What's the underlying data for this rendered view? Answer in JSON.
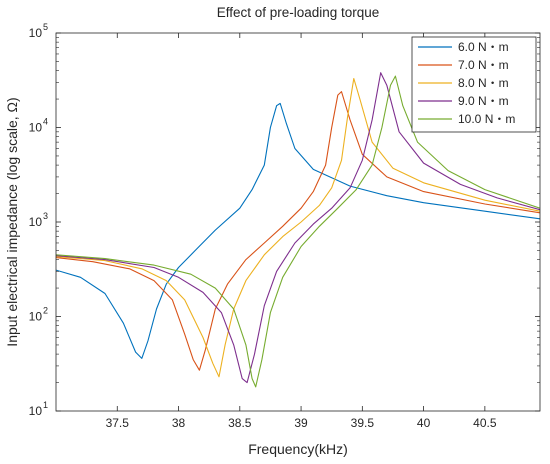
{
  "chart_data": {
    "type": "line",
    "title": "Effect of pre-loading torque",
    "xlabel": "Frequency(kHz)",
    "ylabel": "Input electrical impedance (log scale, Ω)",
    "xlim": [
      37.0,
      40.95
    ],
    "ylim": [
      10,
      100000
    ],
    "yscale": "log",
    "xticks": [
      37.5,
      38,
      38.5,
      39,
      39.5,
      40,
      40.5
    ],
    "xtick_labels": [
      "37.5",
      "38",
      "38.5",
      "39",
      "39.5",
      "40",
      "40.5"
    ],
    "yticks": [
      {
        "value": 10,
        "base": "10",
        "exp": "1"
      },
      {
        "value": 100,
        "base": "10",
        "exp": "2"
      },
      {
        "value": 1000,
        "base": "10",
        "exp": "3"
      },
      {
        "value": 10000,
        "base": "10",
        "exp": "4"
      },
      {
        "value": 100000,
        "base": "10",
        "exp": "5"
      }
    ],
    "grid": false,
    "legend_position": "top-right",
    "series": [
      {
        "name": "6.0 N・m",
        "color": "#0072BD",
        "points": [
          [
            37.0,
            310
          ],
          [
            37.2,
            260
          ],
          [
            37.4,
            175
          ],
          [
            37.55,
            85
          ],
          [
            37.65,
            42
          ],
          [
            37.7,
            36
          ],
          [
            37.75,
            55
          ],
          [
            37.82,
            120
          ],
          [
            37.9,
            220
          ],
          [
            38.0,
            330
          ],
          [
            38.15,
            520
          ],
          [
            38.3,
            820
          ],
          [
            38.5,
            1400
          ],
          [
            38.6,
            2200
          ],
          [
            38.7,
            4000
          ],
          [
            38.75,
            10000
          ],
          [
            38.8,
            17000
          ],
          [
            38.83,
            18000
          ],
          [
            38.88,
            11000
          ],
          [
            38.95,
            6000
          ],
          [
            39.1,
            3600
          ],
          [
            39.4,
            2400
          ],
          [
            39.7,
            1900
          ],
          [
            40.0,
            1600
          ],
          [
            40.5,
            1300
          ],
          [
            40.95,
            1080
          ]
        ]
      },
      {
        "name": "7.0 N・m",
        "color": "#D95319",
        "points": [
          [
            37.0,
            420
          ],
          [
            37.3,
            380
          ],
          [
            37.6,
            320
          ],
          [
            37.8,
            240
          ],
          [
            37.95,
            150
          ],
          [
            38.05,
            65
          ],
          [
            38.12,
            35
          ],
          [
            38.17,
            27
          ],
          [
            38.22,
            45
          ],
          [
            38.3,
            120
          ],
          [
            38.4,
            220
          ],
          [
            38.55,
            400
          ],
          [
            38.7,
            600
          ],
          [
            38.85,
            900
          ],
          [
            39.0,
            1400
          ],
          [
            39.1,
            2100
          ],
          [
            39.2,
            4000
          ],
          [
            39.25,
            10000
          ],
          [
            39.3,
            22000
          ],
          [
            39.33,
            24000
          ],
          [
            39.4,
            12000
          ],
          [
            39.5,
            5200
          ],
          [
            39.7,
            3000
          ],
          [
            40.0,
            2100
          ],
          [
            40.5,
            1550
          ],
          [
            40.95,
            1250
          ]
        ]
      },
      {
        "name": "8.0 N・m",
        "color": "#EDB120",
        "points": [
          [
            37.0,
            430
          ],
          [
            37.4,
            390
          ],
          [
            37.7,
            320
          ],
          [
            37.9,
            240
          ],
          [
            38.05,
            150
          ],
          [
            38.2,
            60
          ],
          [
            38.28,
            32
          ],
          [
            38.33,
            23
          ],
          [
            38.38,
            50
          ],
          [
            38.45,
            120
          ],
          [
            38.55,
            240
          ],
          [
            38.7,
            450
          ],
          [
            38.85,
            700
          ],
          [
            39.0,
            1000
          ],
          [
            39.15,
            1500
          ],
          [
            39.25,
            2300
          ],
          [
            39.33,
            4500
          ],
          [
            39.38,
            13000
          ],
          [
            39.43,
            33000
          ],
          [
            39.48,
            20000
          ],
          [
            39.58,
            7000
          ],
          [
            39.75,
            3700
          ],
          [
            40.0,
            2600
          ],
          [
            40.5,
            1700
          ],
          [
            40.95,
            1300
          ]
        ]
      },
      {
        "name": "9.0 N・m",
        "color": "#7E2F8E",
        "points": [
          [
            37.0,
            440
          ],
          [
            37.4,
            400
          ],
          [
            37.8,
            330
          ],
          [
            38.0,
            260
          ],
          [
            38.2,
            180
          ],
          [
            38.35,
            110
          ],
          [
            38.45,
            50
          ],
          [
            38.52,
            22
          ],
          [
            38.56,
            20
          ],
          [
            38.62,
            40
          ],
          [
            38.7,
            130
          ],
          [
            38.8,
            300
          ],
          [
            38.95,
            600
          ],
          [
            39.1,
            950
          ],
          [
            39.25,
            1400
          ],
          [
            39.4,
            2300
          ],
          [
            39.5,
            4500
          ],
          [
            39.58,
            12000
          ],
          [
            39.65,
            38000
          ],
          [
            39.7,
            28000
          ],
          [
            39.8,
            9000
          ],
          [
            40.0,
            4200
          ],
          [
            40.3,
            2500
          ],
          [
            40.6,
            1800
          ],
          [
            40.95,
            1350
          ]
        ]
      },
      {
        "name": "10.0 N・m",
        "color": "#77AC30",
        "points": [
          [
            37.0,
            450
          ],
          [
            37.4,
            410
          ],
          [
            37.8,
            350
          ],
          [
            38.1,
            280
          ],
          [
            38.3,
            200
          ],
          [
            38.45,
            120
          ],
          [
            38.55,
            50
          ],
          [
            38.6,
            22
          ],
          [
            38.63,
            18
          ],
          [
            38.68,
            35
          ],
          [
            38.75,
            110
          ],
          [
            38.85,
            260
          ],
          [
            39.0,
            550
          ],
          [
            39.15,
            900
          ],
          [
            39.3,
            1400
          ],
          [
            39.45,
            2200
          ],
          [
            39.58,
            4000
          ],
          [
            39.66,
            10000
          ],
          [
            39.73,
            28000
          ],
          [
            39.77,
            35000
          ],
          [
            39.83,
            17000
          ],
          [
            39.95,
            7000
          ],
          [
            40.2,
            3500
          ],
          [
            40.5,
            2200
          ],
          [
            40.95,
            1400
          ]
        ]
      }
    ]
  }
}
